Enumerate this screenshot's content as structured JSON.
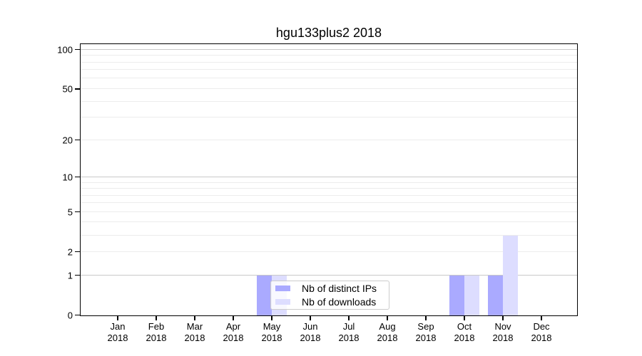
{
  "title": "hgu133plus2 2018",
  "colors": {
    "distinct_ips": "#aaaaff",
    "downloads": "#ddddff",
    "grid_major": "#c9c9c9",
    "grid_minor": "#ececec",
    "axis": "#000000"
  },
  "legend": {
    "items": [
      {
        "label": "Nb of distinct IPs",
        "color_key": "distinct_ips"
      },
      {
        "label": "Nb of downloads",
        "color_key": "downloads"
      }
    ]
  },
  "y_axis": {
    "scale": "log10(1+x)",
    "ticks": [
      0,
      1,
      2,
      5,
      10,
      20,
      50,
      100
    ],
    "major_gridlines": [
      1,
      10,
      100
    ],
    "minor_gridlines": [
      2,
      3,
      4,
      5,
      6,
      7,
      8,
      9,
      20,
      30,
      40,
      50,
      60,
      70,
      80,
      90
    ],
    "max_value": 110
  },
  "x_axis": {
    "months": [
      {
        "month": "Jan",
        "year": "2018"
      },
      {
        "month": "Feb",
        "year": "2018"
      },
      {
        "month": "Mar",
        "year": "2018"
      },
      {
        "month": "Apr",
        "year": "2018"
      },
      {
        "month": "May",
        "year": "2018"
      },
      {
        "month": "Jun",
        "year": "2018"
      },
      {
        "month": "Jul",
        "year": "2018"
      },
      {
        "month": "Aug",
        "year": "2018"
      },
      {
        "month": "Sep",
        "year": "2018"
      },
      {
        "month": "Oct",
        "year": "2018"
      },
      {
        "month": "Nov",
        "year": "2018"
      },
      {
        "month": "Dec",
        "year": "2018"
      }
    ]
  },
  "chart_data": {
    "type": "bar",
    "title": "hgu133plus2 2018",
    "categories": [
      "Jan 2018",
      "Feb 2018",
      "Mar 2018",
      "Apr 2018",
      "May 2018",
      "Jun 2018",
      "Jul 2018",
      "Aug 2018",
      "Sep 2018",
      "Oct 2018",
      "Nov 2018",
      "Dec 2018"
    ],
    "series": [
      {
        "name": "Nb of distinct IPs",
        "color": "#aaaaff",
        "values": [
          0,
          0,
          0,
          0,
          1,
          0,
          0,
          0,
          0,
          1,
          1,
          0
        ]
      },
      {
        "name": "Nb of downloads",
        "color": "#ddddff",
        "values": [
          0,
          0,
          0,
          0,
          1,
          0,
          0,
          0,
          0,
          1,
          3,
          0
        ]
      }
    ],
    "xlabel": "",
    "ylabel": "",
    "yscale": "log10(1+x)",
    "yticks": [
      0,
      1,
      2,
      5,
      10,
      20,
      50,
      100
    ],
    "ylim": [
      0,
      110
    ],
    "grid": true,
    "legend_position": "lower center-left inside plot"
  }
}
